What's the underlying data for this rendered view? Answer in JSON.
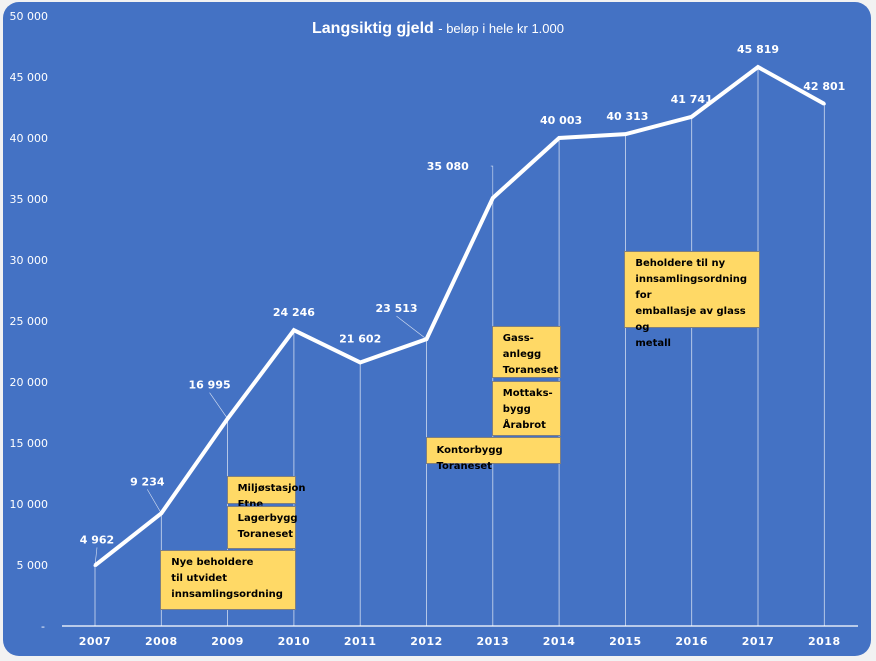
{
  "chart_data": {
    "type": "line",
    "title": "Langsiktig gjeld",
    "subtitle": "- beløp i hele kr 1.000",
    "xlabel": "",
    "ylabel": "",
    "categories": [
      "2007",
      "2008",
      "2009",
      "2010",
      "2011",
      "2012",
      "2013",
      "2014",
      "2015",
      "2016",
      "2017",
      "2018"
    ],
    "series": [
      {
        "name": "Langsiktig gjeld",
        "values": [
          4962,
          9234,
          16995,
          24246,
          21602,
          23513,
          35080,
          40003,
          40313,
          41741,
          45819,
          42801
        ]
      }
    ],
    "data_labels": [
      "4 962",
      "9 234",
      "16 995",
      "24 246",
      "21 602",
      "23 513",
      "35 080",
      "40 003",
      "40 313",
      "41 741",
      "45 819",
      "42 801"
    ],
    "ylim": [
      0,
      50000
    ],
    "y_ticks": [
      0,
      5000,
      10000,
      15000,
      20000,
      25000,
      30000,
      35000,
      40000,
      45000,
      50000
    ],
    "y_tick_labels": [
      "-",
      "5 000",
      "10 000",
      "15 000",
      "20 000",
      "25 000",
      "30 000",
      "35 000",
      "40 000",
      "45 000",
      "50 000"
    ],
    "grid": false,
    "drop_lines": true,
    "legend": "none",
    "annotations": [
      {
        "text": "Miljøstasjon Etne",
        "lines": [
          "Miljøstasjon",
          "Etne"
        ],
        "year_from": "2009",
        "year_to": "2010",
        "value_top": 12300,
        "value_bottom": 10000
      },
      {
        "text": "Lagerbygg Toraneset",
        "lines": [
          "Lagerbygg",
          "Toraneset"
        ],
        "year_from": "2009",
        "year_to": "2010",
        "value_top": 9800,
        "value_bottom": 6300
      },
      {
        "text": "Nye beholdere til utvidet innsamlingsordning",
        "lines": [
          "Nye beholdere",
          "til utvidet",
          "innsamlingsordning"
        ],
        "year_from": "2008",
        "year_to": "2010",
        "value_top": 6200,
        "value_bottom": 1300
      },
      {
        "text": "Gass-anlegg Toraneset",
        "lines": [
          "Gass-",
          "anlegg",
          "Toraneset"
        ],
        "year_from": "2013",
        "year_to": "2014",
        "value_top": 24600,
        "value_bottom": 20300
      },
      {
        "text": "Mottaks-bygg Årabrot",
        "lines": [
          "Mottaks-",
          "bygg",
          "Årabrot"
        ],
        "year_from": "2013",
        "year_to": "2014",
        "value_top": 20100,
        "value_bottom": 15600
      },
      {
        "text": "Kontorbygg Toraneset",
        "lines": [
          "Kontorbygg Toraneset"
        ],
        "year_from": "2012",
        "year_to": "2014",
        "value_top": 15500,
        "value_bottom": 13300
      },
      {
        "text": "Beholdere til ny innsamlingsordning for emballasje av glass og metall",
        "lines": [
          "Beholdere til ny",
          "innsamlingsordning for",
          "emballasje av glass og",
          "metall"
        ],
        "year_from": "2015",
        "year_to": "2017",
        "value_top": 30700,
        "value_bottom": 24400
      }
    ]
  },
  "colors": {
    "background": "#4472c4",
    "line": "#ffffff",
    "text": "#ffffff",
    "annotation_fill": "#ffd966",
    "annotation_border": "#7f7f7f",
    "annotation_text": "#000000"
  }
}
